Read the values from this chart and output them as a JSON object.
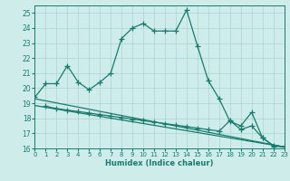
{
  "line1_x": [
    0,
    1,
    2,
    3,
    4,
    5,
    6,
    7,
    8,
    9,
    10,
    11,
    12,
    13,
    14,
    15,
    16,
    17,
    18,
    19,
    20,
    21,
    22,
    23
  ],
  "line1_y": [
    19.4,
    20.3,
    20.3,
    21.5,
    20.4,
    19.9,
    20.4,
    21.0,
    23.3,
    24.0,
    24.3,
    23.8,
    23.8,
    23.8,
    25.2,
    22.8,
    20.5,
    19.3,
    17.8,
    17.5,
    18.4,
    16.7,
    16.2,
    16.1
  ],
  "line2_x": [
    1,
    2,
    3,
    4,
    5,
    6,
    7,
    8,
    9,
    10,
    11,
    12,
    13,
    14,
    15,
    16,
    17,
    18,
    19,
    20,
    21,
    22,
    23
  ],
  "line2_y": [
    18.8,
    18.65,
    18.55,
    18.45,
    18.35,
    18.25,
    18.15,
    18.05,
    17.95,
    17.85,
    17.75,
    17.65,
    17.55,
    17.45,
    17.35,
    17.25,
    17.15,
    17.85,
    17.25,
    17.5,
    16.7,
    16.15,
    16.1
  ],
  "line3_x": [
    0,
    23
  ],
  "line3_y": [
    19.3,
    16.1
  ],
  "line4_x": [
    0,
    23
  ],
  "line4_y": [
    18.85,
    16.1
  ],
  "color": "#1a7a6e",
  "bg_color": "#ceecea",
  "grid_color": "#a8d4d0",
  "xlabel": "Humidex (Indice chaleur)",
  "xlim": [
    0,
    23
  ],
  "ylim": [
    16,
    25.5
  ],
  "yticks": [
    16,
    17,
    18,
    19,
    20,
    21,
    22,
    23,
    24,
    25
  ],
  "xticks": [
    0,
    1,
    2,
    3,
    4,
    5,
    6,
    7,
    8,
    9,
    10,
    11,
    12,
    13,
    14,
    15,
    16,
    17,
    18,
    19,
    20,
    21,
    22,
    23
  ],
  "marker": "+",
  "markersize": 4,
  "linewidth": 0.9
}
